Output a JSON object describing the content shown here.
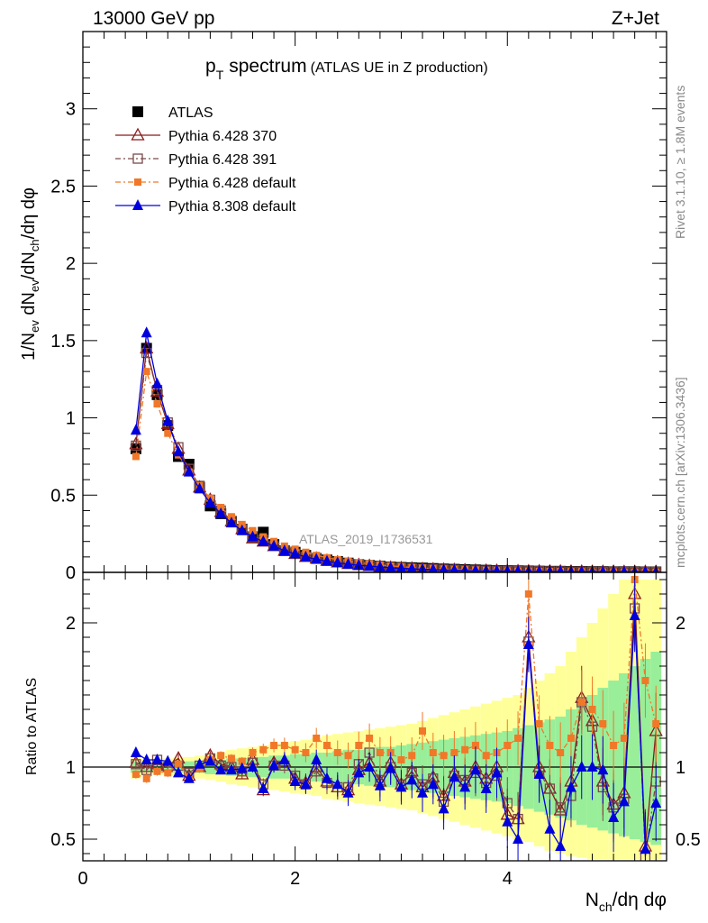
{
  "header": {
    "left": "13000 GeV pp",
    "right": "Z+Jet"
  },
  "side_text": {
    "rivet": "Rivet 3.1.10, ≥ 1.8M events",
    "mcplots": "mcplots.cern.ch [arXiv:1306.3436]"
  },
  "watermark": "ATLAS_2019_I1736531",
  "chart_data": [
    {
      "panel": "main",
      "type": "scatter",
      "title": {
        "pt": "p",
        "sub": "T",
        "spectrum": "spectrum",
        "rest": "(ATLAS UE in Z production)"
      },
      "ylabel": "1/N_ev dN_ev/dN_ch/dη dφ",
      "xlim": [
        0,
        5.5
      ],
      "ylim": [
        0,
        3.5
      ],
      "y_ticks": [
        "0",
        "0.5",
        "1",
        "1.5",
        "2",
        "2.5",
        "3"
      ],
      "legend_position": "top-left",
      "x": [
        0.5,
        0.6,
        0.7,
        0.8,
        0.9,
        1.0,
        1.1,
        1.2,
        1.3,
        1.4,
        1.5,
        1.6,
        1.7,
        1.8,
        1.9,
        2.0,
        2.1,
        2.2,
        2.3,
        2.4,
        2.5,
        2.6,
        2.7,
        2.8,
        2.9,
        3.0,
        3.1,
        3.2,
        3.3,
        3.4,
        3.5,
        3.6,
        3.7,
        3.8,
        3.9,
        4.0,
        4.1,
        4.2,
        4.3,
        4.4,
        4.5,
        4.6,
        4.7,
        4.8,
        4.9,
        5.0,
        5.1,
        5.2,
        5.3,
        5.4
      ],
      "series": [
        {
          "name": "ATLAS",
          "color": "#000000",
          "marker": "filled-square",
          "values": [
            0.8,
            1.45,
            1.15,
            0.95,
            0.75,
            0.7,
            0.55,
            0.43,
            0.38,
            0.33,
            0.28,
            0.23,
            0.26,
            0.18,
            0.14,
            0.13,
            0.11,
            0.09,
            0.08,
            0.07,
            0.06,
            0.05,
            0.045,
            0.04,
            0.035,
            0.032,
            0.03,
            0.028,
            0.025,
            0.022,
            0.02,
            0.018,
            0.016,
            0.014,
            0.012,
            0.011,
            0.01,
            0.009,
            0.008,
            0.007,
            0.007,
            0.006,
            0.006,
            0.005,
            0.005,
            0.004,
            0.004,
            0.004,
            0.003,
            0.003
          ]
        },
        {
          "name": "Pythia 6.428 370",
          "color": "#8b1a1a",
          "marker": "open-triangle",
          "dash": "",
          "values": [
            0.83,
            1.45,
            1.17,
            0.96,
            0.8,
            0.66,
            0.55,
            0.47,
            0.39,
            0.33,
            0.28,
            0.22,
            0.2,
            0.17,
            0.14,
            0.12,
            0.1,
            0.09,
            0.075,
            0.065,
            0.055,
            0.048,
            0.042,
            0.036,
            0.031,
            0.028,
            0.025,
            0.022,
            0.02,
            0.018,
            0.016,
            0.014,
            0.012,
            0.011,
            0.01,
            0.009,
            0.008,
            0.007,
            0.007,
            0.006,
            0.006,
            0.005,
            0.005,
            0.004,
            0.004,
            0.004,
            0.003,
            0.003,
            0.003,
            0.003
          ]
        },
        {
          "name": "Pythia 6.428 391",
          "color": "#7a4a4a",
          "marker": "open-square",
          "dash": "6 3 2 3",
          "values": [
            0.82,
            1.42,
            1.18,
            0.97,
            0.81,
            0.67,
            0.56,
            0.47,
            0.4,
            0.33,
            0.28,
            0.23,
            0.21,
            0.17,
            0.14,
            0.12,
            0.1,
            0.09,
            0.075,
            0.065,
            0.056,
            0.049,
            0.043,
            0.037,
            0.032,
            0.028,
            0.025,
            0.022,
            0.02,
            0.018,
            0.016,
            0.014,
            0.012,
            0.011,
            0.01,
            0.009,
            0.008,
            0.007,
            0.007,
            0.006,
            0.006,
            0.005,
            0.005,
            0.004,
            0.004,
            0.004,
            0.003,
            0.003,
            0.003,
            0.003
          ]
        },
        {
          "name": "Pythia 6.428 default",
          "color": "#f07828",
          "marker": "filled-small-square",
          "dash": "6 3 2 3",
          "values": [
            0.75,
            1.3,
            1.09,
            0.9,
            0.76,
            0.65,
            0.56,
            0.48,
            0.42,
            0.36,
            0.31,
            0.27,
            0.23,
            0.2,
            0.17,
            0.15,
            0.13,
            0.11,
            0.095,
            0.082,
            0.072,
            0.063,
            0.055,
            0.048,
            0.042,
            0.037,
            0.032,
            0.028,
            0.025,
            0.022,
            0.019,
            0.017,
            0.015,
            0.013,
            0.011,
            0.01,
            0.009,
            0.008,
            0.007,
            0.006,
            0.006,
            0.005,
            0.005,
            0.004,
            0.004,
            0.004,
            0.003,
            0.003,
            0.003,
            0.003
          ]
        },
        {
          "name": "Pythia 8.308 default",
          "color": "#0000dd",
          "marker": "filled-triangle",
          "dash": "",
          "values": [
            0.92,
            1.55,
            1.22,
            0.98,
            0.78,
            0.65,
            0.54,
            0.45,
            0.38,
            0.32,
            0.27,
            0.23,
            0.2,
            0.17,
            0.14,
            0.12,
            0.1,
            0.085,
            0.072,
            0.062,
            0.053,
            0.046,
            0.04,
            0.035,
            0.03,
            0.026,
            0.023,
            0.02,
            0.018,
            0.016,
            0.014,
            0.012,
            0.011,
            0.01,
            0.009,
            0.008,
            0.007,
            0.006,
            0.006,
            0.005,
            0.005,
            0.004,
            0.004,
            0.004,
            0.003,
            0.003,
            0.003,
            0.003,
            0.003,
            0.002
          ]
        }
      ]
    },
    {
      "panel": "ratio",
      "type": "line",
      "ylabel": "Ratio to ATLAS",
      "xlabel": "N_ch/dη dφ",
      "xlim": [
        0,
        5.5
      ],
      "ylim": [
        0.35,
        2.35
      ],
      "y_ticks": [
        "0.5",
        "1",
        "2"
      ],
      "x_ticks": [
        "0",
        "2",
        "4"
      ],
      "x": [
        0.5,
        0.6,
        0.7,
        0.8,
        0.9,
        1.0,
        1.1,
        1.2,
        1.3,
        1.4,
        1.5,
        1.6,
        1.7,
        1.8,
        1.9,
        2.0,
        2.1,
        2.2,
        2.3,
        2.4,
        2.5,
        2.6,
        2.7,
        2.8,
        2.9,
        3.0,
        3.1,
        3.2,
        3.3,
        3.4,
        3.5,
        3.6,
        3.7,
        3.8,
        3.9,
        4.0,
        4.1,
        4.2,
        4.3,
        4.4,
        4.5,
        4.6,
        4.7,
        4.8,
        4.9,
        5.0,
        5.1,
        5.2,
        5.3,
        5.4
      ],
      "band_yellow": [
        [
          0.92,
          1.08
        ],
        [
          0.95,
          1.05
        ],
        [
          0.95,
          1.05
        ],
        [
          0.94,
          1.06
        ],
        [
          0.93,
          1.07
        ],
        [
          0.93,
          1.07
        ],
        [
          0.92,
          1.08
        ],
        [
          0.91,
          1.09
        ],
        [
          0.9,
          1.1
        ],
        [
          0.88,
          1.12
        ],
        [
          0.87,
          1.13
        ],
        [
          0.86,
          1.14
        ],
        [
          0.85,
          1.15
        ],
        [
          0.84,
          1.16
        ],
        [
          0.83,
          1.17
        ],
        [
          0.82,
          1.18
        ],
        [
          0.81,
          1.19
        ],
        [
          0.8,
          1.2
        ],
        [
          0.78,
          1.22
        ],
        [
          0.77,
          1.23
        ],
        [
          0.76,
          1.24
        ],
        [
          0.75,
          1.25
        ],
        [
          0.74,
          1.26
        ],
        [
          0.73,
          1.27
        ],
        [
          0.72,
          1.28
        ],
        [
          0.71,
          1.29
        ],
        [
          0.7,
          1.3
        ],
        [
          0.68,
          1.32
        ],
        [
          0.66,
          1.34
        ],
        [
          0.64,
          1.36
        ],
        [
          0.62,
          1.38
        ],
        [
          0.6,
          1.4
        ],
        [
          0.58,
          1.42
        ],
        [
          0.56,
          1.44
        ],
        [
          0.54,
          1.46
        ],
        [
          0.52,
          1.48
        ],
        [
          0.5,
          1.5
        ],
        [
          0.48,
          1.55
        ],
        [
          0.45,
          1.6
        ],
        [
          0.42,
          1.65
        ],
        [
          0.4,
          1.7
        ],
        [
          0.38,
          1.8
        ],
        [
          0.37,
          1.9
        ],
        [
          0.36,
          2.0
        ],
        [
          0.36,
          2.1
        ],
        [
          0.36,
          2.2
        ],
        [
          0.36,
          2.3
        ],
        [
          0.36,
          2.3
        ],
        [
          0.36,
          2.3
        ],
        [
          0.36,
          2.3
        ]
      ],
      "band_green": [
        [
          0.96,
          1.04
        ],
        [
          0.97,
          1.03
        ],
        [
          0.97,
          1.03
        ],
        [
          0.97,
          1.03
        ],
        [
          0.96,
          1.04
        ],
        [
          0.96,
          1.04
        ],
        [
          0.96,
          1.04
        ],
        [
          0.95,
          1.05
        ],
        [
          0.95,
          1.05
        ],
        [
          0.94,
          1.06
        ],
        [
          0.94,
          1.06
        ],
        [
          0.93,
          1.07
        ],
        [
          0.93,
          1.07
        ],
        [
          0.92,
          1.08
        ],
        [
          0.92,
          1.08
        ],
        [
          0.91,
          1.09
        ],
        [
          0.91,
          1.09
        ],
        [
          0.9,
          1.1
        ],
        [
          0.9,
          1.1
        ],
        [
          0.89,
          1.11
        ],
        [
          0.88,
          1.12
        ],
        [
          0.88,
          1.12
        ],
        [
          0.87,
          1.13
        ],
        [
          0.86,
          1.14
        ],
        [
          0.86,
          1.14
        ],
        [
          0.85,
          1.15
        ],
        [
          0.84,
          1.16
        ],
        [
          0.83,
          1.17
        ],
        [
          0.82,
          1.18
        ],
        [
          0.81,
          1.19
        ],
        [
          0.8,
          1.2
        ],
        [
          0.79,
          1.21
        ],
        [
          0.78,
          1.22
        ],
        [
          0.77,
          1.23
        ],
        [
          0.76,
          1.24
        ],
        [
          0.75,
          1.25
        ],
        [
          0.73,
          1.27
        ],
        [
          0.71,
          1.29
        ],
        [
          0.69,
          1.31
        ],
        [
          0.67,
          1.33
        ],
        [
          0.65,
          1.35
        ],
        [
          0.63,
          1.4
        ],
        [
          0.6,
          1.45
        ],
        [
          0.58,
          1.5
        ],
        [
          0.56,
          1.55
        ],
        [
          0.54,
          1.6
        ],
        [
          0.52,
          1.65
        ],
        [
          0.5,
          1.7
        ],
        [
          0.48,
          1.75
        ],
        [
          0.46,
          1.8
        ]
      ],
      "series": [
        {
          "name": "Pythia 6.428 370",
          "color": "#8b1a1a",
          "marker": "open-triangle",
          "dash": "",
          "values": [
            1.03,
            1.0,
            1.02,
            1.01,
            1.06,
            0.94,
            1.0,
            1.08,
            1.02,
            1.0,
            0.95,
            1.05,
            0.84,
            1.03,
            1.04,
            0.92,
            0.89,
            1.0,
            0.9,
            0.86,
            0.84,
            0.98,
            1.03,
            0.9,
            1.03,
            0.88,
            0.97,
            0.86,
            0.93,
            0.8,
            0.96,
            0.9,
            1.0,
            0.92,
            1.0,
            0.67,
            0.64,
            1.9,
            1.0,
            0.85,
            0.7,
            0.9,
            1.48,
            1.32,
            0.9,
            0.74,
            0.82,
            2.2,
            0.45,
            1.25
          ]
        },
        {
          "name": "Pythia 6.428 391",
          "color": "#7a4a4a",
          "marker": "open-square",
          "dash": "6 3 2 3",
          "values": [
            1.02,
            0.98,
            1.05,
            1.0,
            1.01,
            0.96,
            1.01,
            1.06,
            1.01,
            1.0,
            0.97,
            1.03,
            0.88,
            1.01,
            1.01,
            0.94,
            0.88,
            0.97,
            0.89,
            0.86,
            0.86,
            1.02,
            1.1,
            0.91,
            1.0,
            0.88,
            0.96,
            0.88,
            0.92,
            0.76,
            0.94,
            0.91,
            0.96,
            0.89,
            0.94,
            0.75,
            0.64,
            1.87,
            0.96,
            0.85,
            0.72,
            0.8,
            1.45,
            1.28,
            0.86,
            0.72,
            0.78,
            2.1,
            0.38,
            0.9
          ]
        },
        {
          "name": "Pythia 6.428 default",
          "color": "#f07828",
          "marker": "filled-small-square",
          "dash": "6 3 2 3",
          "values": [
            0.95,
            0.92,
            0.97,
            0.96,
            1.02,
            0.93,
            0.99,
            1.05,
            1.08,
            1.06,
            1.04,
            1.1,
            1.12,
            1.15,
            1.15,
            1.12,
            1.1,
            1.2,
            1.15,
            1.1,
            1.08,
            1.15,
            1.2,
            1.1,
            1.1,
            1.05,
            1.08,
            1.25,
            1.1,
            1.08,
            1.1,
            1.12,
            1.15,
            1.08,
            1.1,
            1.15,
            1.2,
            2.2,
            1.3,
            1.15,
            1.1,
            1.2,
            1.45,
            1.4,
            1.3,
            1.15,
            1.2,
            2.3,
            1.6,
            1.3
          ]
        },
        {
          "name": "Pythia 8.308 default",
          "color": "#0000dd",
          "marker": "filled-triangle",
          "dash": "",
          "values": [
            1.1,
            1.05,
            1.05,
            1.04,
            0.96,
            0.92,
            1.02,
            1.04,
            0.98,
            0.98,
            0.99,
            1.0,
            0.85,
            1.01,
            1.05,
            0.9,
            0.88,
            1.05,
            0.92,
            0.88,
            0.82,
            0.96,
            1.0,
            0.87,
            0.99,
            0.86,
            0.91,
            0.82,
            0.88,
            0.71,
            0.93,
            0.86,
            0.98,
            0.85,
            0.96,
            0.62,
            0.5,
            1.85,
            0.95,
            0.57,
            0.45,
            0.86,
            1.0,
            1.0,
            0.98,
            0.65,
            0.76,
            2.05,
            0.43,
            0.75
          ]
        }
      ]
    }
  ]
}
